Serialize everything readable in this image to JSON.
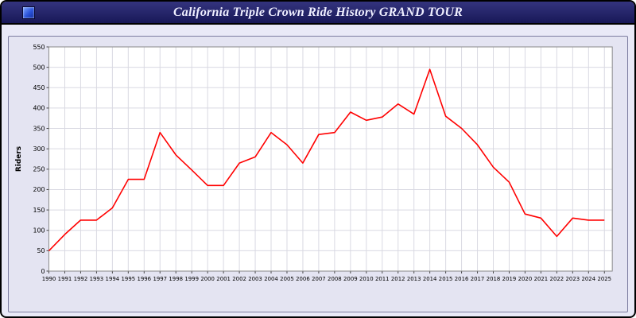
{
  "window": {
    "title": "California Triple Crown Ride History GRAND TOUR"
  },
  "chart_data": {
    "type": "line",
    "title": "California Triple Crown Ride History GRAND TOUR",
    "xlabel": "",
    "ylabel": "Riders",
    "ylim": [
      0,
      550
    ],
    "ytick_step": 50,
    "grid": true,
    "legend": "none",
    "line_color": "#ff0000",
    "plot_bg": "#ffffff",
    "grid_color": "#d9d9e2",
    "categories": [
      1990,
      1991,
      1992,
      1993,
      1994,
      1995,
      1996,
      1997,
      1998,
      1999,
      2000,
      2001,
      2002,
      2003,
      2004,
      2005,
      2006,
      2007,
      2008,
      2009,
      2010,
      2011,
      2012,
      2013,
      2014,
      2015,
      2016,
      2017,
      2018,
      2019,
      2020,
      2021,
      2022,
      2023,
      2024,
      2025
    ],
    "values": [
      50,
      90,
      125,
      125,
      155,
      225,
      225,
      340,
      285,
      248,
      210,
      210,
      265,
      280,
      340,
      310,
      265,
      335,
      340,
      390,
      370,
      378,
      410,
      385,
      495,
      380,
      350,
      310,
      255,
      218,
      140,
      130,
      85,
      130,
      125,
      125
    ]
  }
}
